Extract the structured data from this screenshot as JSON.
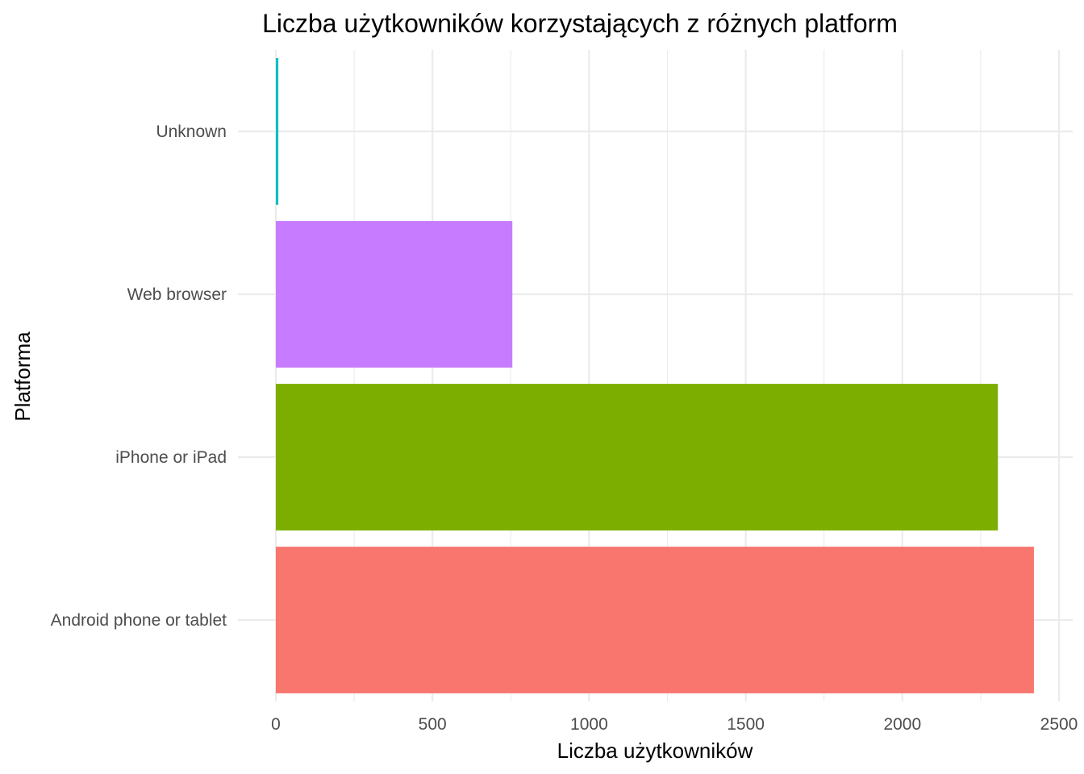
{
  "chart_data": {
    "type": "bar",
    "orientation": "horizontal",
    "title": "Liczba użytkowników korzystających z różnych platform",
    "xlabel": "Liczba użytkowników",
    "ylabel": "Platforma",
    "categories": [
      "Android phone or tablet",
      "iPhone or iPad",
      "Web browser",
      "Unknown"
    ],
    "values": [
      2420,
      2305,
      755,
      8
    ],
    "colors": [
      "#F8766D",
      "#7CAE00",
      "#C77CFF",
      "#00BFC4"
    ],
    "xlim": [
      0,
      2500
    ],
    "xticks": [
      0,
      500,
      1000,
      1500,
      2000,
      2500
    ],
    "xtick_labels": [
      "0",
      "500",
      "1000",
      "1500",
      "2000",
      "2500"
    ],
    "grid": true,
    "legend": "none"
  }
}
